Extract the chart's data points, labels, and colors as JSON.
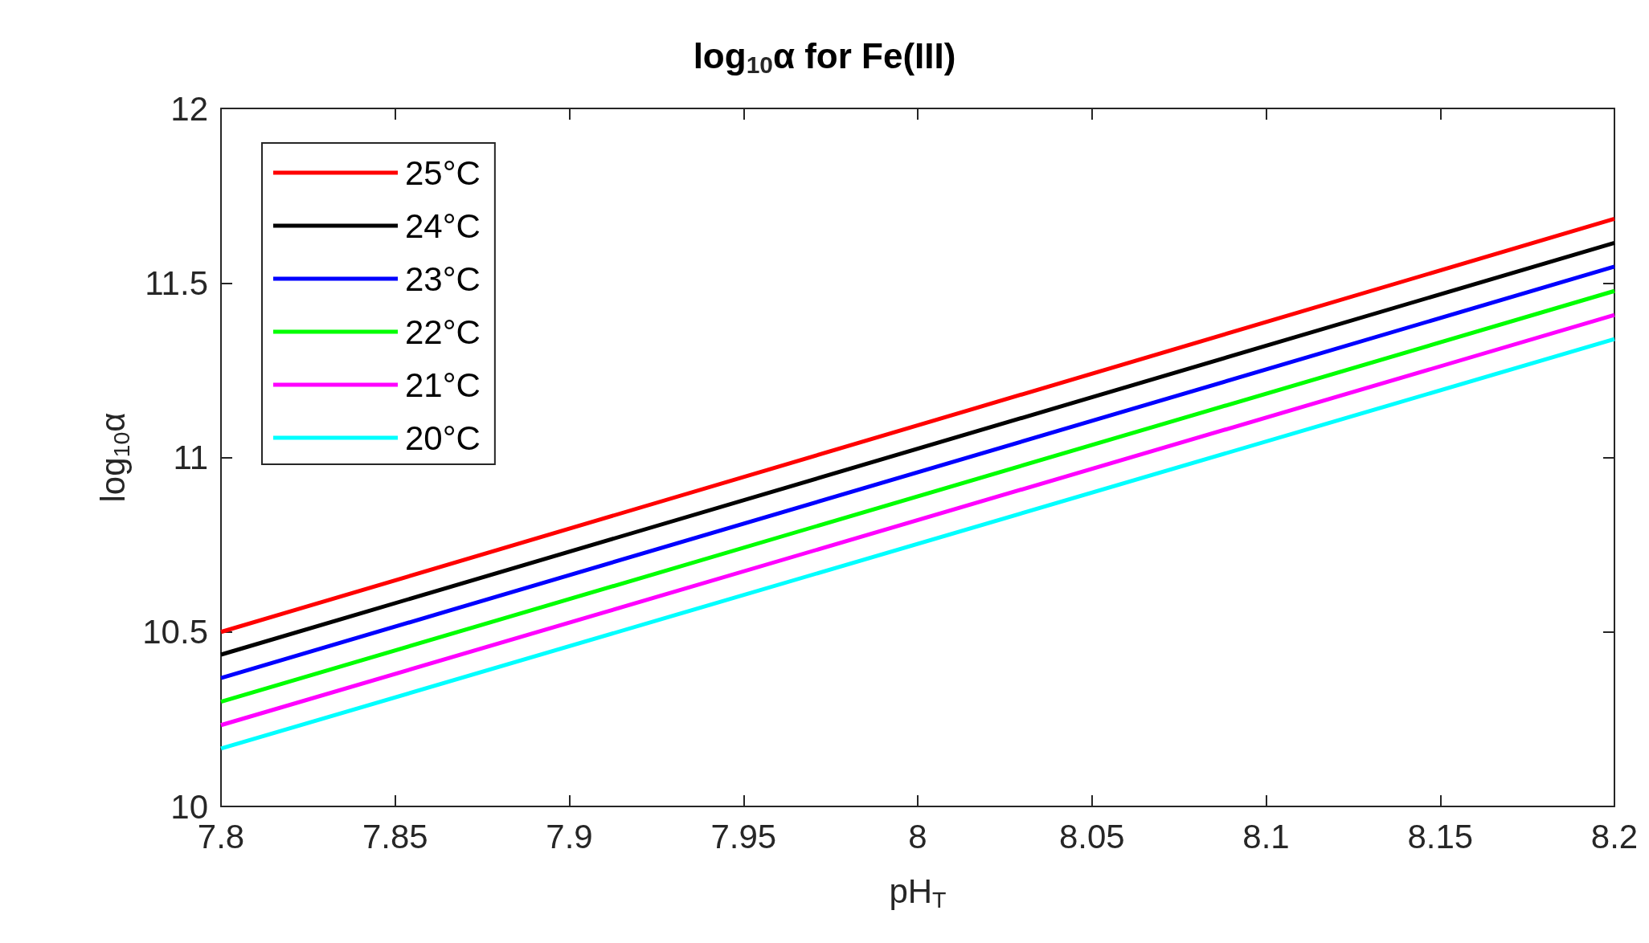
{
  "chart_data": {
    "type": "line",
    "title": "log$_{10}$α for Fe(III)",
    "xlabel": "pH$_{T}$",
    "ylabel": "log$_{10}$α",
    "x": [
      7.8,
      8.2
    ],
    "series": [
      {
        "name": "25°C",
        "color": "#ff0000",
        "values": [
          10.5,
          11.684
        ]
      },
      {
        "name": "24°C",
        "color": "#000000",
        "values": [
          10.435,
          11.615
        ]
      },
      {
        "name": "23°C",
        "color": "#0000ff",
        "values": [
          10.368,
          11.547
        ]
      },
      {
        "name": "22°C",
        "color": "#00ff00",
        "values": [
          10.3,
          11.477
        ]
      },
      {
        "name": "21°C",
        "color": "#ff00ff",
        "values": [
          10.233,
          11.408
        ]
      },
      {
        "name": "20°C",
        "color": "#00ffff",
        "values": [
          10.166,
          11.339
        ]
      }
    ],
    "xlim": [
      7.8,
      8.2
    ],
    "xticks": [
      7.8,
      7.85,
      7.9,
      7.95,
      8,
      8.05,
      8.1,
      8.15,
      8.2
    ],
    "ylim": [
      10,
      12
    ],
    "yticks": [
      10,
      10.5,
      11,
      11.5,
      12
    ],
    "grid": false,
    "legend": "top left",
    "marker": "none",
    "line_style": "solid"
  }
}
